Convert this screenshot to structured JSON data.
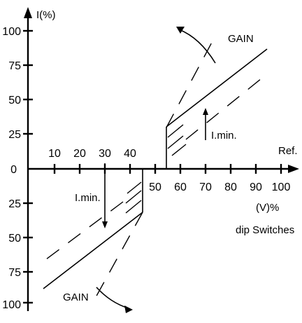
{
  "axes": {
    "y_label": "I(%)",
    "x_right_label": "Ref.",
    "x_unit_label": "(V)%",
    "x_caption": "dip Switches"
  },
  "x_ticks_upper": [
    "10",
    "20",
    "30",
    "40"
  ],
  "x_ticks_lower": [
    "50",
    "60",
    "70",
    "80",
    "90",
    "100"
  ],
  "y_ticks_upper": [
    "100",
    "75",
    "50",
    "25",
    "0"
  ],
  "y_ticks_lower": [
    "25",
    "50",
    "75",
    "100"
  ],
  "annotations": {
    "gain_top": "GAIN",
    "gain_bottom": "GAIN",
    "imin_upper": "I.min.",
    "imin_lower": "I.min."
  }
}
